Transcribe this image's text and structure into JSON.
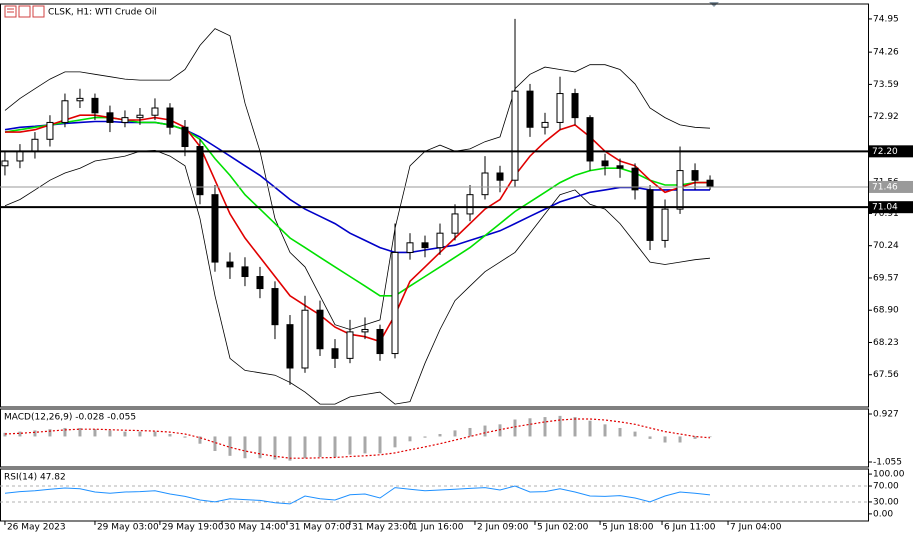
{
  "chart_data": [
    {
      "type": "candlestick",
      "title": "CLSK, H1: WTI Crude Oil",
      "open": [
        71.9,
        72.0,
        72.2,
        72.45,
        72.8,
        73.25,
        73.3,
        73.0,
        72.8,
        72.9,
        72.95,
        73.1,
        72.7,
        72.3,
        71.3,
        69.9,
        69.8,
        69.6,
        69.35,
        68.6,
        67.7,
        68.9,
        68.1,
        67.9,
        68.45,
        68.5,
        68.0,
        70.1,
        70.3,
        70.2,
        70.5,
        70.9,
        71.3,
        71.75,
        71.6,
        73.45,
        72.7,
        72.8,
        73.4,
        72.9,
        72.0,
        71.9,
        71.85,
        71.4,
        70.35,
        71.0,
        71.8,
        71.6
      ],
      "high": [
        72.2,
        72.35,
        72.6,
        72.95,
        73.4,
        73.5,
        73.4,
        73.15,
        73.05,
        73.1,
        73.3,
        73.2,
        72.85,
        72.45,
        71.5,
        70.1,
        70.0,
        69.8,
        69.5,
        68.8,
        69.2,
        69.1,
        68.3,
        68.7,
        68.75,
        68.6,
        70.7,
        70.5,
        70.45,
        70.7,
        71.1,
        71.5,
        72.1,
        71.9,
        74.95,
        73.6,
        73.0,
        73.75,
        73.5,
        72.95,
        72.15,
        72.05,
        71.95,
        71.5,
        71.2,
        72.3,
        71.95,
        71.7
      ],
      "low": [
        71.7,
        71.85,
        72.05,
        72.3,
        72.7,
        73.1,
        72.85,
        72.6,
        72.7,
        72.75,
        72.85,
        72.55,
        72.1,
        71.1,
        69.7,
        69.55,
        69.4,
        69.15,
        68.3,
        67.35,
        67.6,
        67.95,
        67.7,
        67.8,
        68.3,
        67.85,
        67.9,
        69.95,
        70.0,
        70.05,
        70.35,
        70.75,
        71.2,
        71.35,
        71.45,
        72.5,
        72.55,
        72.65,
        72.75,
        71.8,
        71.7,
        71.65,
        71.2,
        70.15,
        70.2,
        70.9,
        71.4,
        71.4
      ],
      "close": [
        72.0,
        72.2,
        72.45,
        72.8,
        73.25,
        73.3,
        73.0,
        72.8,
        72.9,
        72.95,
        73.1,
        72.7,
        72.3,
        71.3,
        69.9,
        69.8,
        69.6,
        69.35,
        68.6,
        67.7,
        68.9,
        68.1,
        67.9,
        68.45,
        68.5,
        68.0,
        70.1,
        70.3,
        70.2,
        70.5,
        70.9,
        71.3,
        71.75,
        71.6,
        73.45,
        72.7,
        72.8,
        73.4,
        72.9,
        72.0,
        71.9,
        71.85,
        71.4,
        70.35,
        71.0,
        71.8,
        71.6,
        71.46
      ],
      "lines": [
        {
          "color": "#000000",
          "values": [
            73.05,
            73.3,
            73.5,
            73.7,
            73.85,
            73.85,
            73.8,
            73.75,
            73.7,
            73.68,
            73.68,
            73.68,
            73.9,
            74.4,
            74.75,
            74.6,
            73.2,
            72.2,
            70.8,
            70.1,
            69.8,
            69.2,
            68.6,
            68.5,
            68.6,
            68.7,
            70.6,
            71.9,
            72.2,
            72.33,
            72.2,
            72.25,
            72.4,
            72.5,
            73.5,
            73.8,
            73.95,
            73.9,
            73.85,
            74.0,
            74.0,
            73.9,
            73.6,
            73.1,
            72.9,
            72.75,
            72.7,
            72.68
          ]
        },
        {
          "color": "#000000",
          "values": [
            71.07,
            71.2,
            71.4,
            71.6,
            71.75,
            71.85,
            72.0,
            72.05,
            72.1,
            72.2,
            72.22,
            72.1,
            71.9,
            70.8,
            69.2,
            67.9,
            67.65,
            67.6,
            67.55,
            67.4,
            67.2,
            66.95,
            66.95,
            67.1,
            67.15,
            67.2,
            66.95,
            67.0,
            67.8,
            68.5,
            69.1,
            69.4,
            69.7,
            69.9,
            70.1,
            70.5,
            70.9,
            71.3,
            71.4,
            71.1,
            71.0,
            70.7,
            70.3,
            69.9,
            69.85,
            69.9,
            69.95,
            69.98
          ]
        },
        {
          "color": "#0000c8",
          "values": [
            72.65,
            72.7,
            72.72,
            72.75,
            72.78,
            72.8,
            72.82,
            72.82,
            72.8,
            72.8,
            72.8,
            72.75,
            72.65,
            72.5,
            72.3,
            72.1,
            71.9,
            71.7,
            71.45,
            71.2,
            71.0,
            70.85,
            70.7,
            70.5,
            70.35,
            70.2,
            70.1,
            70.1,
            70.15,
            70.2,
            70.25,
            70.35,
            70.45,
            70.55,
            70.7,
            70.85,
            71.0,
            71.15,
            71.25,
            71.35,
            71.4,
            71.45,
            71.45,
            71.4,
            71.4,
            71.4,
            71.4,
            71.4
          ]
        },
        {
          "color": "#00e000",
          "values": [
            72.6,
            72.65,
            72.7,
            72.75,
            72.8,
            72.85,
            72.9,
            72.9,
            72.85,
            72.8,
            72.8,
            72.75,
            72.65,
            72.45,
            72.05,
            71.7,
            71.3,
            71.0,
            70.7,
            70.4,
            70.2,
            70.0,
            69.8,
            69.6,
            69.4,
            69.2,
            69.2,
            69.4,
            69.6,
            69.8,
            70.0,
            70.2,
            70.45,
            70.7,
            70.95,
            71.15,
            71.35,
            71.55,
            71.7,
            71.8,
            71.85,
            71.85,
            71.75,
            71.6,
            71.5,
            71.5,
            71.55,
            71.55
          ]
        },
        {
          "color": "#e00000",
          "values": [
            72.6,
            72.6,
            72.65,
            72.75,
            72.85,
            72.95,
            72.95,
            72.9,
            72.85,
            72.85,
            72.9,
            72.85,
            72.7,
            72.3,
            71.6,
            70.9,
            70.4,
            70.0,
            69.6,
            69.2,
            69.0,
            68.8,
            68.55,
            68.4,
            68.35,
            68.25,
            68.8,
            69.5,
            69.8,
            70.1,
            70.4,
            70.7,
            71.0,
            71.2,
            71.7,
            72.1,
            72.4,
            72.65,
            72.75,
            72.5,
            72.2,
            72.0,
            71.9,
            71.6,
            71.35,
            71.45,
            71.55,
            71.55
          ]
        }
      ],
      "hlines": [
        {
          "value": 72.2,
          "label": "72.20",
          "color": "#000000"
        },
        {
          "value": 71.46,
          "label": "71.46",
          "color": "#9a9a9a"
        },
        {
          "value": 71.04,
          "label": "71.04",
          "color": "#000000"
        }
      ],
      "ylim": [
        66.89,
        75.26
      ],
      "yticks": [
        74.95,
        74.26,
        73.59,
        72.92,
        71.56,
        70.91,
        70.24,
        69.57,
        {
          "value": 68.9,
          "label": "68.90"
        },
        68.23,
        67.56
      ],
      "xlim": [
        -0.33,
        57.53
      ],
      "xticks": [
        {
          "value": 0,
          "label": "26 May 2023"
        },
        {
          "value": 6,
          "label": "29 May 03:00"
        },
        {
          "value": 10.33,
          "label": "29 May 19:00"
        },
        {
          "value": 14.47,
          "label": "30 May 14:00"
        },
        {
          "value": 18.8,
          "label": "31 May 07:00"
        },
        {
          "value": 23,
          "label": "31 May 23:00"
        },
        {
          "value": 27,
          "label": "1 Jun 16:00"
        },
        {
          "value": 31.33,
          "label": "2 Jun 09:00"
        },
        {
          "value": 35.33,
          "label": "5 Jun 02:00"
        },
        {
          "value": 39.67,
          "label": "5 Jun 18:00"
        },
        {
          "value": 43.8,
          "label": "6 Jun 11:00"
        },
        {
          "value": 48.2,
          "label": "7 Jun 04:00"
        }
      ]
    },
    {
      "type": "macd",
      "title": "MACD(12,26,9) -0.028 -0.055",
      "histogram": {
        "color": "#a8a8a8",
        "values": [
          0.15,
          0.2,
          0.25,
          0.3,
          0.35,
          0.35,
          0.3,
          0.25,
          0.2,
          0.2,
          0.2,
          0.1,
          -0.05,
          -0.3,
          -0.6,
          -0.8,
          -0.9,
          -0.9,
          -0.95,
          -1.0,
          -0.9,
          -0.85,
          -0.85,
          -0.75,
          -0.7,
          -0.7,
          -0.45,
          -0.2,
          -0.05,
          0.1,
          0.25,
          0.35,
          0.45,
          0.5,
          0.7,
          0.75,
          0.8,
          0.85,
          0.8,
          0.65,
          0.5,
          0.35,
          0.2,
          -0.1,
          -0.25,
          -0.25,
          -0.1,
          -0.028
        ]
      },
      "signal": {
        "color": "#e00000",
        "values": [
          0.1,
          0.13,
          0.17,
          0.22,
          0.27,
          0.3,
          0.3,
          0.28,
          0.26,
          0.24,
          0.22,
          0.18,
          0.1,
          -0.05,
          -0.25,
          -0.45,
          -0.6,
          -0.72,
          -0.82,
          -0.9,
          -0.9,
          -0.88,
          -0.87,
          -0.83,
          -0.8,
          -0.76,
          -0.68,
          -0.55,
          -0.43,
          -0.3,
          -0.15,
          0.0,
          0.15,
          0.28,
          0.4,
          0.5,
          0.6,
          0.68,
          0.72,
          0.72,
          0.68,
          0.6,
          0.5,
          0.35,
          0.2,
          0.1,
          0.0,
          -0.055
        ]
      },
      "ylim": [
        -1.262,
        1.134
      ],
      "yticks": [
        0.927,
        -1.055
      ]
    },
    {
      "type": "line",
      "title": "RSI(14) 47.82",
      "color": "#1e90ff",
      "values": [
        52,
        56,
        58,
        62,
        65,
        63,
        55,
        52,
        55,
        56,
        58,
        50,
        44,
        35,
        30,
        38,
        36,
        34,
        28,
        25,
        45,
        38,
        35,
        48,
        50,
        40,
        66,
        62,
        58,
        60,
        62,
        64,
        66,
        60,
        70,
        55,
        56,
        63,
        55,
        45,
        44,
        46,
        40,
        30,
        45,
        55,
        52,
        47.82
      ],
      "levels": [
        70,
        30
      ],
      "ylim": [
        -17.9,
        112.8
      ],
      "yticks": [
        {
          "value": 100,
          "label": "100.00"
        },
        {
          "value": 70,
          "label": "70.00"
        },
        {
          "value": 30,
          "label": "30.00"
        },
        {
          "value": 0,
          "label": "0.00"
        }
      ]
    }
  ]
}
